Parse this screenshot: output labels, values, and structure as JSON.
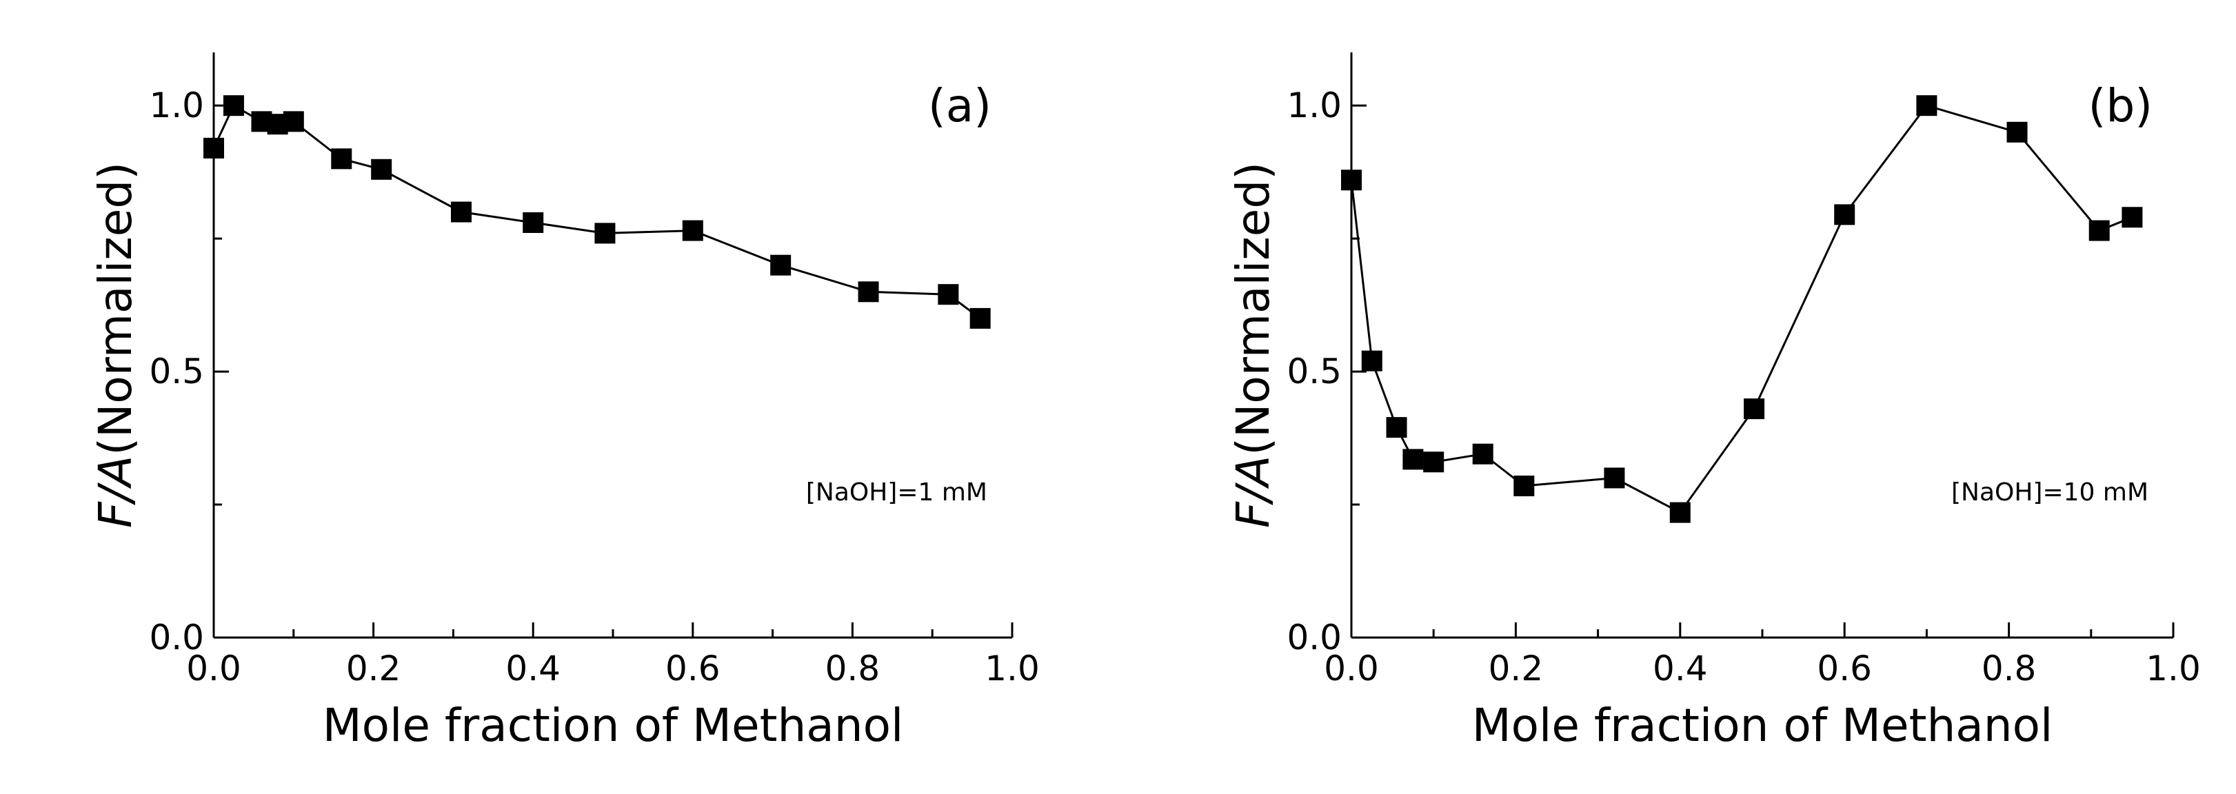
{
  "chart_data": [
    {
      "type": "line",
      "panel_label": "(a)",
      "annotation": "[NaOH]=1 mM",
      "xlabel": "Mole fraction of Methanol",
      "ylabel_italic": "F/A",
      "ylabel_rest": "(Normalized)",
      "xlim": [
        0.0,
        1.0
      ],
      "ylim": [
        0.0,
        1.1
      ],
      "xticks": [
        "0.0",
        "0.2",
        "0.4",
        "0.6",
        "0.8",
        "1.0"
      ],
      "yticks": [
        "0.0",
        "0.5",
        "1.0"
      ],
      "series": [
        {
          "name": "[NaOH]=1 mM",
          "marker": "square",
          "x": [
            0.0,
            0.025,
            0.06,
            0.08,
            0.1,
            0.16,
            0.21,
            0.31,
            0.4,
            0.49,
            0.6,
            0.71,
            0.82,
            0.92,
            0.96
          ],
          "y": [
            0.92,
            1.0,
            0.97,
            0.965,
            0.97,
            0.9,
            0.88,
            0.8,
            0.78,
            0.76,
            0.765,
            0.7,
            0.65,
            0.645,
            0.6
          ]
        }
      ]
    },
    {
      "type": "line",
      "panel_label": "(b)",
      "annotation": "[NaOH]=10 mM",
      "xlabel": "Mole fraction of Methanol",
      "ylabel_italic": "F/A",
      "ylabel_rest": "(Normalized)",
      "xlim": [
        0.0,
        1.0
      ],
      "ylim": [
        0.0,
        1.1
      ],
      "xticks": [
        "0.0",
        "0.2",
        "0.4",
        "0.6",
        "0.8",
        "1.0"
      ],
      "yticks": [
        "0.0",
        "0.5",
        "1.0"
      ],
      "series": [
        {
          "name": "[NaOH]=10 mM",
          "marker": "square",
          "x": [
            0.0,
            0.025,
            0.055,
            0.075,
            0.1,
            0.16,
            0.21,
            0.32,
            0.4,
            0.49,
            0.6,
            0.7,
            0.81,
            0.91,
            0.95
          ],
          "y": [
            0.86,
            0.52,
            0.395,
            0.335,
            0.33,
            0.345,
            0.285,
            0.3,
            0.235,
            0.43,
            0.795,
            1.0,
            0.95,
            0.765,
            0.79
          ]
        }
      ]
    }
  ]
}
